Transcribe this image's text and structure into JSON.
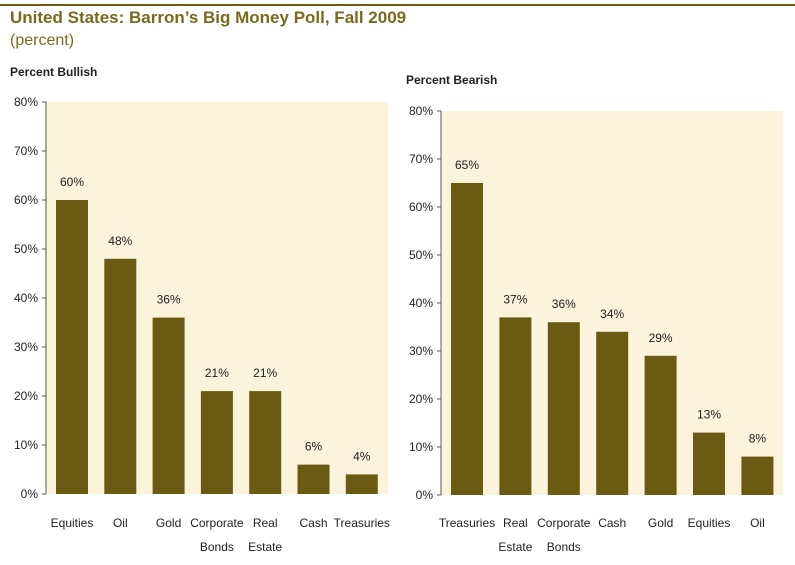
{
  "title": "United States: Barron’s Big Money Poll, Fall 2009",
  "subtitle": "(percent)",
  "colors": {
    "bar": "#6b5a12",
    "plot_bg": "#fbf3dc",
    "title": "#7a6a1e",
    "text": "#222222"
  },
  "chart_data": [
    {
      "type": "bar",
      "title": "Percent Bullish",
      "xlabel": "",
      "ylabel": "",
      "ylim": [
        0,
        80
      ],
      "yticks": [
        "0%",
        "10%",
        "20%",
        "30%",
        "40%",
        "50%",
        "60%",
        "70%",
        "80%"
      ],
      "categories": [
        [
          "Equities"
        ],
        [
          "Oil"
        ],
        [
          "Gold"
        ],
        [
          "Corporate",
          "Bonds"
        ],
        [
          "Real",
          "Estate"
        ],
        [
          "Cash"
        ],
        [
          "Treasuries"
        ]
      ],
      "values": [
        60,
        48,
        36,
        21,
        21,
        6,
        4
      ],
      "value_labels": [
        "60%",
        "48%",
        "36%",
        "21%",
        "21%",
        "6%",
        "4%"
      ]
    },
    {
      "type": "bar",
      "title": "Percent Bearish",
      "xlabel": "",
      "ylabel": "",
      "ylim": [
        0,
        80
      ],
      "yticks": [
        "0%",
        "10%",
        "20%",
        "30%",
        "40%",
        "50%",
        "60%",
        "70%",
        "80%"
      ],
      "categories": [
        [
          "Treasuries"
        ],
        [
          "Real",
          "Estate"
        ],
        [
          "Corporate",
          "Bonds"
        ],
        [
          "Cash"
        ],
        [
          "Gold"
        ],
        [
          "Equities"
        ],
        [
          "Oil"
        ]
      ],
      "values": [
        65,
        37,
        36,
        34,
        29,
        13,
        8
      ],
      "value_labels": [
        "65%",
        "37%",
        "36%",
        "34%",
        "29%",
        "13%",
        "8%"
      ]
    }
  ]
}
